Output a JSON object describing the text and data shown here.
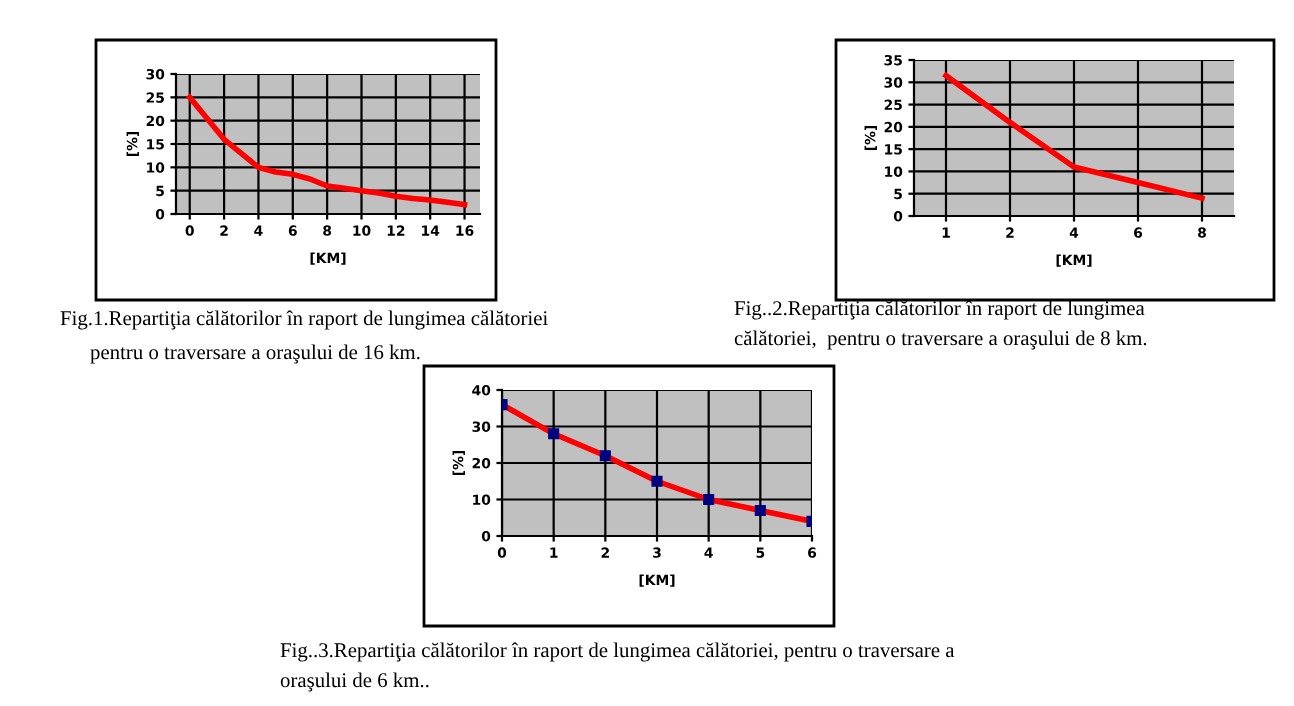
{
  "chart_data": [
    {
      "type": "line",
      "xlabel": "[KM]",
      "ylabel": "[%]",
      "x": [
        0,
        1,
        2,
        3,
        4,
        5,
        6,
        7,
        8,
        9,
        10,
        11,
        12,
        13,
        14,
        15,
        16
      ],
      "series": [
        {
          "color": "#ff0000",
          "values": [
            25,
            20.5,
            16,
            13,
            10,
            9,
            8.5,
            7.5,
            6,
            5.5,
            5,
            4.5,
            3.8,
            3.3,
            3,
            2.5,
            2
          ]
        }
      ],
      "xlim": [
        -0.8,
        16.9
      ],
      "xticks": [
        0,
        2,
        4,
        6,
        8,
        10,
        12,
        14,
        16
      ],
      "ylim": [
        0,
        30
      ],
      "yticks": [
        0,
        5,
        10,
        15,
        20,
        25,
        30
      ],
      "grid": true,
      "annotations": [
        "Fig.1.Repartiţia călătorilor în raport de lungimea călătoriei",
        "pentru o traversare a oraşului de 16 km."
      ]
    },
    {
      "type": "line",
      "xlabel": "[KM]",
      "ylabel": "[%]",
      "categories": [
        "1",
        "2",
        "4",
        "6",
        "8"
      ],
      "series": [
        {
          "color": "#ff0000",
          "values": [
            31.5,
            21,
            11,
            7.5,
            4
          ]
        }
      ],
      "ylim": [
        0,
        35
      ],
      "yticks": [
        0,
        5,
        10,
        15,
        20,
        25,
        30,
        35
      ],
      "grid": true,
      "annotations": [
        "Fig..2.Repartiţia călătorilor în raport de lungimea",
        "călătoriei,  pentru o traversare a oraşului de 8 km."
      ]
    },
    {
      "type": "line",
      "xlabel": "[KM]",
      "ylabel": "[%]",
      "x": [
        0,
        1,
        2,
        3,
        4,
        5,
        6
      ],
      "marker": "square",
      "series": [
        {
          "color": "#ff0000",
          "values": [
            36,
            28,
            22,
            15,
            10,
            7,
            4
          ]
        }
      ],
      "xlim": [
        0,
        6
      ],
      "xticks": [
        0,
        1,
        2,
        3,
        4,
        5,
        6
      ],
      "ylim": [
        0,
        40
      ],
      "yticks": [
        0,
        10,
        20,
        30,
        40
      ],
      "grid": true,
      "annotations": [
        "Fig..3.Repartiţia călătorilor în raport de lungimea călătoriei, pentru o traversare a",
        "oraşului de 6 km.."
      ]
    }
  ]
}
